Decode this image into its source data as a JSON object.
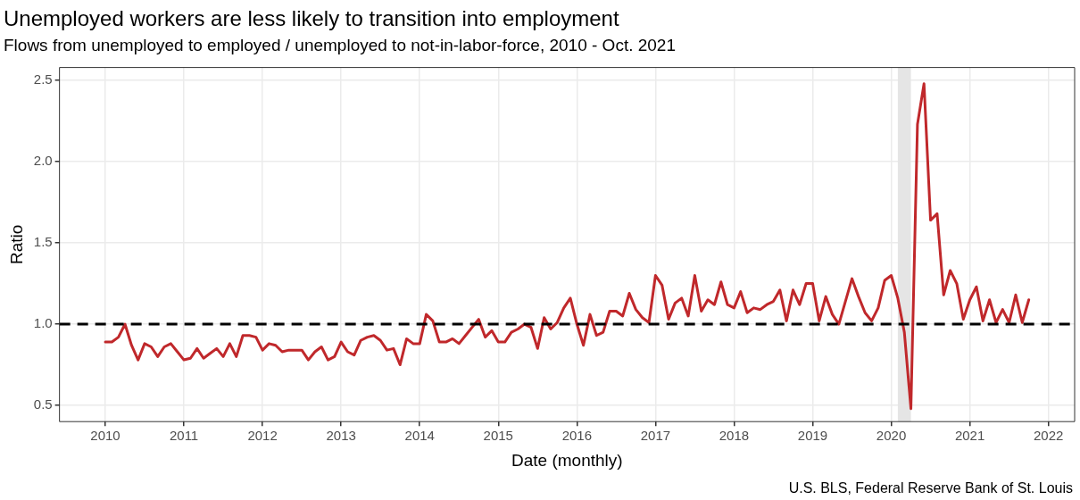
{
  "chart_data": {
    "type": "line",
    "title": "Unemployed workers are less likely to transition into employment",
    "subtitle": "Flows from unemployed to employed / unemployed to not-in-labor-force, 2010 - Oct. 2021",
    "xlabel": "Date (monthly)",
    "ylabel": "Ratio",
    "annotations": [
      "U.S. BLS, Federal Reserve Bank of St. Louis"
    ],
    "x": [
      "2010-01",
      "2010-02",
      "2010-03",
      "2010-04",
      "2010-05",
      "2010-06",
      "2010-07",
      "2010-08",
      "2010-09",
      "2010-10",
      "2010-11",
      "2010-12",
      "2011-01",
      "2011-02",
      "2011-03",
      "2011-04",
      "2011-05",
      "2011-06",
      "2011-07",
      "2011-08",
      "2011-09",
      "2011-10",
      "2011-11",
      "2011-12",
      "2012-01",
      "2012-02",
      "2012-03",
      "2012-04",
      "2012-05",
      "2012-06",
      "2012-07",
      "2012-08",
      "2012-09",
      "2012-10",
      "2012-11",
      "2012-12",
      "2013-01",
      "2013-02",
      "2013-03",
      "2013-04",
      "2013-05",
      "2013-06",
      "2013-07",
      "2013-08",
      "2013-09",
      "2013-10",
      "2013-11",
      "2013-12",
      "2014-01",
      "2014-02",
      "2014-03",
      "2014-04",
      "2014-05",
      "2014-06",
      "2014-07",
      "2014-08",
      "2014-09",
      "2014-10",
      "2014-11",
      "2014-12",
      "2015-01",
      "2015-02",
      "2015-03",
      "2015-04",
      "2015-05",
      "2015-06",
      "2015-07",
      "2015-08",
      "2015-09",
      "2015-10",
      "2015-11",
      "2015-12",
      "2016-01",
      "2016-02",
      "2016-03",
      "2016-04",
      "2016-05",
      "2016-06",
      "2016-07",
      "2016-08",
      "2016-09",
      "2016-10",
      "2016-11",
      "2016-12",
      "2017-01",
      "2017-02",
      "2017-03",
      "2017-04",
      "2017-05",
      "2017-06",
      "2017-07",
      "2017-08",
      "2017-09",
      "2017-10",
      "2017-11",
      "2017-12",
      "2018-01",
      "2018-02",
      "2018-03",
      "2018-04",
      "2018-05",
      "2018-06",
      "2018-07",
      "2018-08",
      "2018-09",
      "2018-10",
      "2018-11",
      "2018-12",
      "2019-01",
      "2019-02",
      "2019-03",
      "2019-04",
      "2019-05",
      "2019-06",
      "2019-07",
      "2019-08",
      "2019-09",
      "2019-10",
      "2019-11",
      "2019-12",
      "2020-01",
      "2020-02",
      "2020-03",
      "2020-04",
      "2020-05",
      "2020-06",
      "2020-07",
      "2020-08",
      "2020-09",
      "2020-10",
      "2020-11",
      "2020-12",
      "2021-01",
      "2021-02",
      "2021-03",
      "2021-04",
      "2021-05",
      "2021-06",
      "2021-07",
      "2021-08",
      "2021-09",
      "2021-10"
    ],
    "series": [
      {
        "color": "#c0282b",
        "values": [
          0.89,
          0.89,
          0.92,
          1.0,
          0.87,
          0.78,
          0.88,
          0.86,
          0.8,
          0.86,
          0.88,
          0.83,
          0.78,
          0.79,
          0.85,
          0.79,
          0.82,
          0.85,
          0.8,
          0.88,
          0.8,
          0.93,
          0.93,
          0.92,
          0.84,
          0.88,
          0.87,
          0.83,
          0.84,
          0.84,
          0.84,
          0.78,
          0.83,
          0.86,
          0.78,
          0.8,
          0.89,
          0.83,
          0.81,
          0.9,
          0.92,
          0.93,
          0.9,
          0.84,
          0.85,
          0.75,
          0.91,
          0.88,
          0.88,
          1.06,
          1.02,
          0.89,
          0.89,
          0.91,
          0.88,
          0.93,
          0.98,
          1.03,
          0.92,
          0.96,
          0.89,
          0.89,
          0.95,
          0.97,
          1.0,
          0.98,
          0.85,
          1.04,
          0.97,
          1.01,
          1.1,
          1.16,
          1.0,
          0.87,
          1.06,
          0.93,
          0.95,
          1.08,
          1.08,
          1.05,
          1.19,
          1.09,
          1.04,
          1.01,
          1.3,
          1.24,
          1.03,
          1.13,
          1.16,
          1.05,
          1.3,
          1.08,
          1.15,
          1.12,
          1.26,
          1.12,
          1.1,
          1.2,
          1.07,
          1.1,
          1.09,
          1.12,
          1.14,
          1.21,
          1.02,
          1.21,
          1.12,
          1.25,
          1.25,
          1.02,
          1.17,
          1.06,
          1.0,
          1.14,
          1.28,
          1.17,
          1.07,
          1.02,
          1.1,
          1.27,
          1.3,
          1.16,
          0.95,
          0.48,
          2.23,
          2.48,
          1.64,
          1.68,
          1.18,
          1.33,
          1.25,
          1.03,
          1.15,
          1.23,
          1.02,
          1.15,
          1.01,
          1.09,
          1.01,
          1.18,
          1.01,
          1.15
        ]
      }
    ],
    "xlim": [
      "2009-06",
      "2022-05"
    ],
    "xticks": [
      "2010",
      "2011",
      "2012",
      "2013",
      "2014",
      "2015",
      "2016",
      "2017",
      "2018",
      "2019",
      "2020",
      "2021",
      "2022"
    ],
    "ylim": [
      0.4,
      2.58
    ],
    "yticks": [
      {
        "value": 0.5,
        "label": "0.5"
      },
      {
        "value": 1,
        "label": "1.0"
      },
      {
        "value": 1.5,
        "label": "1.5"
      },
      {
        "value": 2,
        "label": "2.0"
      },
      {
        "value": 2.5,
        "label": "2.5"
      }
    ],
    "ref_lines": [
      {
        "axis": "y",
        "value": 1,
        "color": "#000000",
        "line_style": "dashed"
      }
    ],
    "bands": [
      {
        "axis": "x",
        "from": "2020-02",
        "to": "2020-04",
        "color": "#e5e5e5"
      }
    ],
    "grid": true,
    "legend": false,
    "marker": "none",
    "line_style": "solid"
  }
}
